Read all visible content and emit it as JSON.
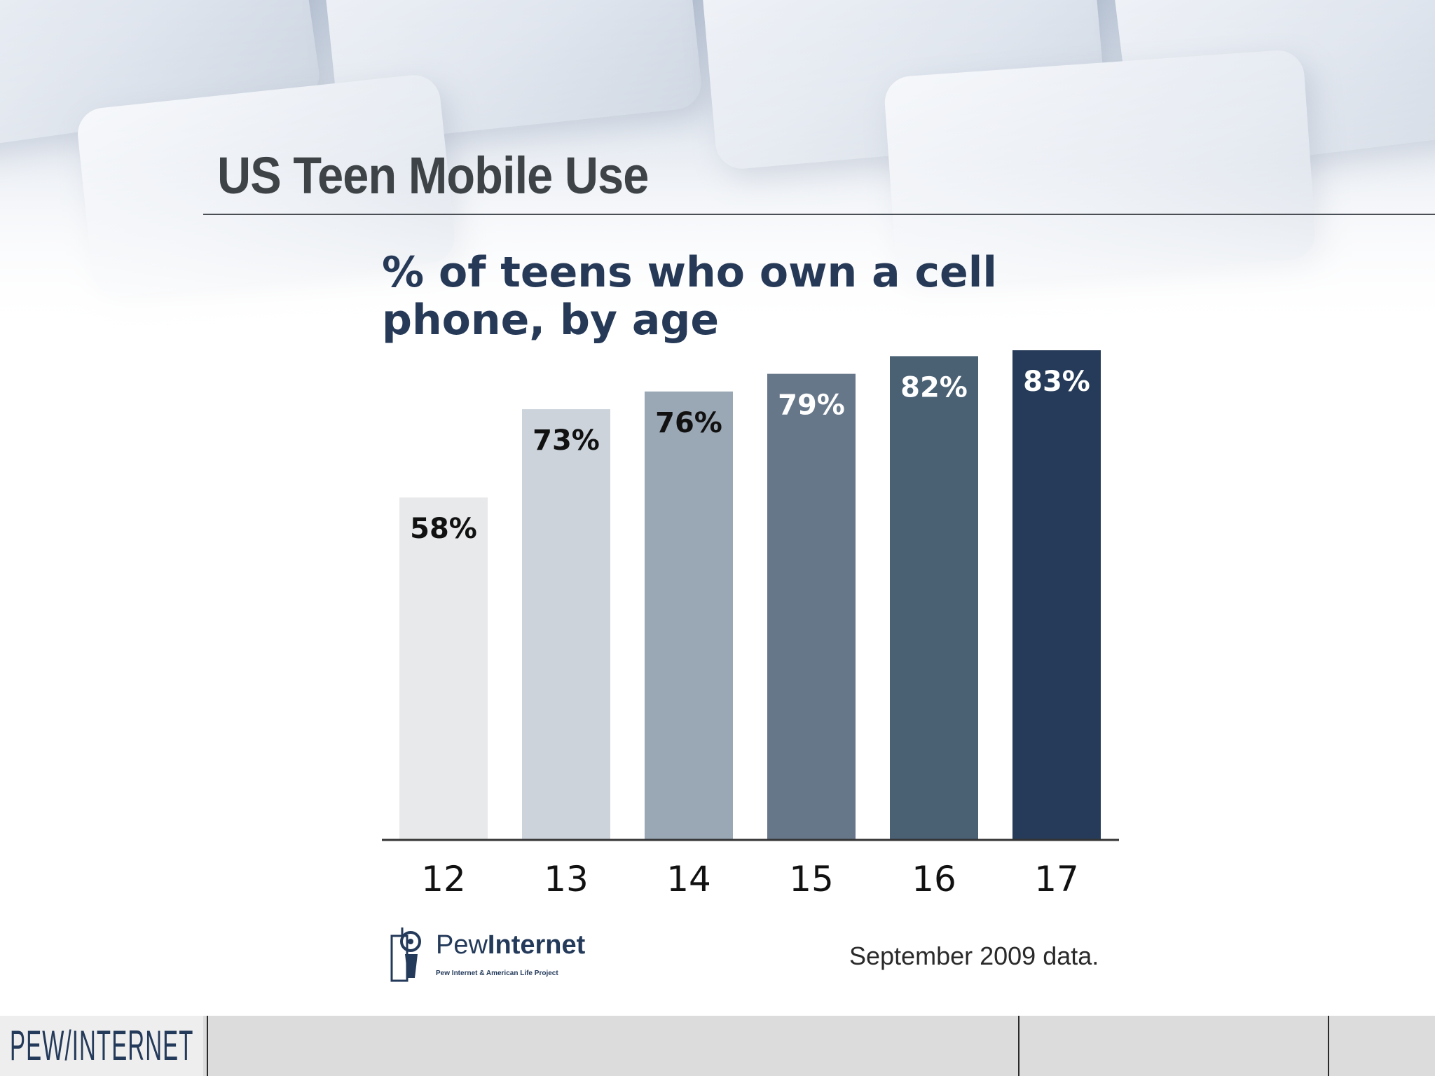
{
  "slide": {
    "title": "US Teen Mobile Use",
    "source_note": "September 2009 data."
  },
  "logo": {
    "word_light": "Pew",
    "word_bold": "Internet",
    "tagline": "Pew Internet & American Life Project"
  },
  "footer": {
    "brand": "PEW/INTERNET"
  },
  "chart_data": {
    "type": "bar",
    "title": "% of teens who own a cell phone, by age",
    "categories": [
      "12",
      "13",
      "14",
      "15",
      "16",
      "17"
    ],
    "values": [
      58,
      73,
      76,
      79,
      82,
      83
    ],
    "data_labels": [
      "58%",
      "73%",
      "76%",
      "79%",
      "82%",
      "83%"
    ],
    "bar_colors": [
      "#e8e9ea",
      "#ccd3db",
      "#9aa7b4",
      "#67778a",
      "#4a6174",
      "#263b59"
    ],
    "label_colors": [
      "#111111",
      "#111111",
      "#111111",
      "#ffffff",
      "#ffffff",
      "#ffffff"
    ],
    "xlabel": "",
    "ylabel": "",
    "ylim": [
      0,
      100
    ],
    "grid": false,
    "legend": "none"
  }
}
